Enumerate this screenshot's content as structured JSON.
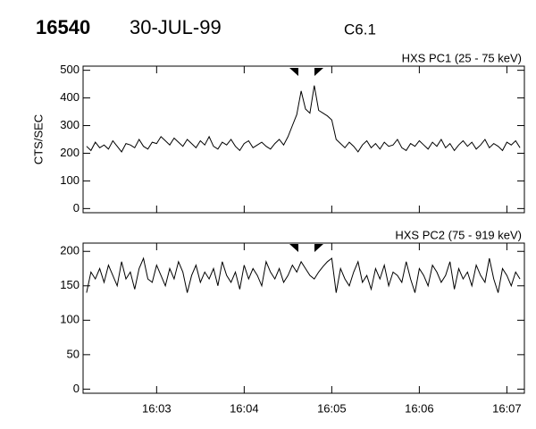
{
  "header": {
    "id": "16540",
    "date": "30-JUL-99",
    "class": "C6.1"
  },
  "chart_data": [
    {
      "type": "line",
      "title": "HXS PC1 (25 - 75 keV)",
      "ylabel": "CTS/SEC",
      "color": "#000000",
      "xlim": [
        2.16,
        7.2
      ],
      "ylim": [
        -15,
        515
      ],
      "xticks": [
        3,
        4,
        5,
        6,
        7
      ],
      "yticks": [
        0,
        100,
        200,
        300,
        400,
        500
      ],
      "x": [
        2.2,
        2.25,
        2.3,
        2.35,
        2.4,
        2.45,
        2.5,
        2.55,
        2.6,
        2.65,
        2.7,
        2.75,
        2.8,
        2.85,
        2.9,
        2.95,
        3.0,
        3.05,
        3.1,
        3.15,
        3.2,
        3.25,
        3.3,
        3.35,
        3.4,
        3.45,
        3.5,
        3.55,
        3.6,
        3.65,
        3.7,
        3.75,
        3.8,
        3.85,
        3.9,
        3.95,
        4.0,
        4.05,
        4.1,
        4.15,
        4.2,
        4.25,
        4.3,
        4.35,
        4.4,
        4.45,
        4.5,
        4.55,
        4.6,
        4.65,
        4.7,
        4.75,
        4.8,
        4.85,
        4.9,
        4.95,
        5.0,
        5.05,
        5.1,
        5.15,
        5.2,
        5.25,
        5.3,
        5.35,
        5.4,
        5.45,
        5.5,
        5.55,
        5.6,
        5.65,
        5.7,
        5.75,
        5.8,
        5.85,
        5.9,
        5.95,
        6.0,
        6.05,
        6.1,
        6.15,
        6.2,
        6.25,
        6.3,
        6.35,
        6.4,
        6.45,
        6.5,
        6.55,
        6.6,
        6.65,
        6.7,
        6.75,
        6.8,
        6.85,
        6.9,
        6.95,
        7.0,
        7.05,
        7.1,
        7.15
      ],
      "values": [
        225,
        210,
        240,
        220,
        230,
        215,
        245,
        225,
        205,
        235,
        230,
        220,
        250,
        225,
        215,
        240,
        235,
        260,
        245,
        230,
        255,
        240,
        225,
        250,
        235,
        220,
        245,
        230,
        260,
        225,
        215,
        240,
        230,
        250,
        225,
        210,
        235,
        245,
        220,
        230,
        240,
        225,
        215,
        235,
        250,
        230,
        260,
        300,
        340,
        425,
        360,
        345,
        445,
        355,
        345,
        335,
        320,
        250,
        235,
        220,
        240,
        225,
        205,
        230,
        245,
        220,
        235,
        215,
        240,
        225,
        230,
        250,
        220,
        210,
        235,
        225,
        245,
        230,
        215,
        240,
        225,
        250,
        220,
        235,
        210,
        230,
        245,
        225,
        240,
        215,
        230,
        250,
        220,
        235,
        225,
        210,
        240,
        230,
        245,
        220
      ]
    },
    {
      "type": "line",
      "title": "HXS PC2 (75 - 919 keV)",
      "color": "#000000",
      "xlim": [
        2.16,
        7.2
      ],
      "ylim": [
        -6,
        212
      ],
      "xticks": [
        {
          "value": 3,
          "label": "16:03"
        },
        {
          "value": 4,
          "label": "16:04"
        },
        {
          "value": 5,
          "label": "16:05"
        },
        {
          "value": 6,
          "label": "16:06"
        },
        {
          "value": 7,
          "label": "16:07"
        }
      ],
      "yticks": [
        0,
        50,
        100,
        150,
        200
      ],
      "x": [
        2.2,
        2.25,
        2.3,
        2.35,
        2.4,
        2.45,
        2.5,
        2.55,
        2.6,
        2.65,
        2.7,
        2.75,
        2.8,
        2.85,
        2.9,
        2.95,
        3.0,
        3.05,
        3.1,
        3.15,
        3.2,
        3.25,
        3.3,
        3.35,
        3.4,
        3.45,
        3.5,
        3.55,
        3.6,
        3.65,
        3.7,
        3.75,
        3.8,
        3.85,
        3.9,
        3.95,
        4.0,
        4.05,
        4.1,
        4.15,
        4.2,
        4.25,
        4.3,
        4.35,
        4.4,
        4.45,
        4.5,
        4.55,
        4.6,
        4.65,
        4.7,
        4.75,
        4.8,
        4.85,
        4.9,
        4.95,
        5.0,
        5.05,
        5.1,
        5.15,
        5.2,
        5.25,
        5.3,
        5.35,
        5.4,
        5.45,
        5.5,
        5.55,
        5.6,
        5.65,
        5.7,
        5.75,
        5.8,
        5.85,
        5.9,
        5.95,
        6.0,
        6.05,
        6.1,
        6.15,
        6.2,
        6.25,
        6.3,
        6.35,
        6.4,
        6.45,
        6.5,
        6.55,
        6.6,
        6.65,
        6.7,
        6.75,
        6.8,
        6.85,
        6.9,
        6.95,
        7.0,
        7.05,
        7.1,
        7.15
      ],
      "values": [
        140,
        170,
        160,
        175,
        155,
        180,
        165,
        150,
        185,
        160,
        170,
        145,
        175,
        190,
        160,
        155,
        180,
        165,
        150,
        175,
        160,
        185,
        170,
        140,
        165,
        180,
        155,
        170,
        160,
        175,
        150,
        185,
        165,
        155,
        170,
        145,
        180,
        160,
        175,
        165,
        150,
        185,
        170,
        160,
        175,
        155,
        165,
        180,
        170,
        185,
        175,
        165,
        160,
        170,
        178,
        185,
        190,
        140,
        175,
        160,
        150,
        170,
        185,
        155,
        165,
        145,
        175,
        160,
        180,
        150,
        170,
        165,
        155,
        185,
        160,
        140,
        175,
        165,
        150,
        180,
        170,
        155,
        165,
        185,
        145,
        175,
        160,
        170,
        150,
        180,
        165,
        155,
        190,
        160,
        140,
        175,
        165,
        150,
        170,
        160
      ]
    }
  ]
}
